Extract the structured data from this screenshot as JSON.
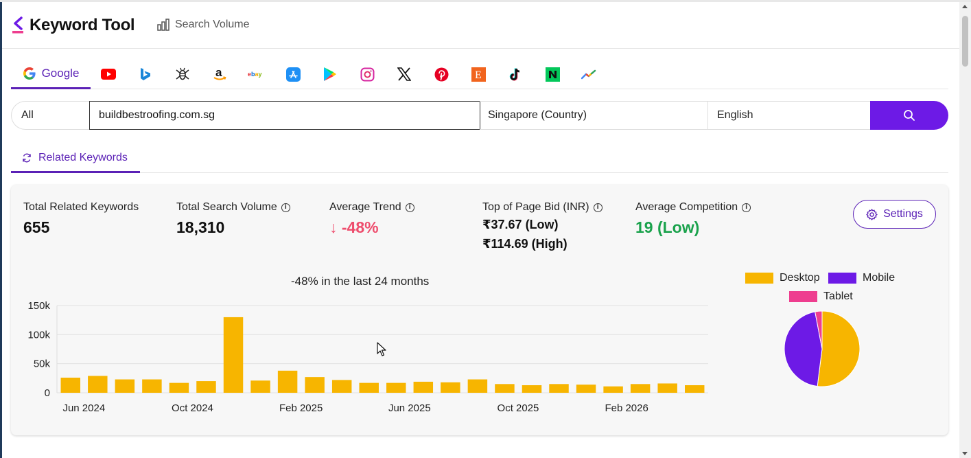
{
  "app": {
    "title": "Keyword Tool",
    "nav_search_volume": "Search Volume"
  },
  "platform_tabs": {
    "active_label": "Google",
    "icons": [
      "youtube-icon",
      "bing-icon",
      "bee-icon",
      "amazon-icon",
      "ebay-icon",
      "app-store-icon",
      "play-store-icon",
      "instagram-icon",
      "x-icon",
      "pinterest-icon",
      "etsy-icon",
      "tiktok-icon",
      "naver-icon",
      "trends-icon"
    ]
  },
  "search": {
    "scope": "All",
    "query": "buildbestroofing.com.sg",
    "location": "Singapore (Country)",
    "language": "English"
  },
  "result_tabs": {
    "related_label": "Related Keywords"
  },
  "stats": {
    "total_related_label": "Total Related Keywords",
    "total_related_value": "655",
    "total_volume_label": "Total Search Volume",
    "total_volume_value": "18,310",
    "avg_trend_label": "Average Trend",
    "avg_trend_value": "↓ -48%",
    "bid_label": "Top of Page Bid (INR)",
    "bid_low": "₹37.67 (Low)",
    "bid_high": "₹114.69 (High)",
    "competition_label": "Average Competition",
    "competition_value": "19 (Low)",
    "settings_label": "Settings"
  },
  "colors": {
    "accent": "#6d1ae6",
    "bar": "#f7b500",
    "trend_red": "#ee4d6d",
    "competition_green": "#1aa24c",
    "desktop": "#f7b500",
    "mobile": "#6d1ae6",
    "tablet": "#ee3e8f"
  },
  "chart_data": [
    {
      "type": "bar",
      "title": "-48% in the last 24 months",
      "x_tick_labels": [
        "Jun 2024",
        "Oct 2024",
        "Feb 2025",
        "Jun 2025",
        "Oct 2025",
        "Feb 2026"
      ],
      "y_tick_labels": [
        "150k",
        "100k",
        "50k",
        "0"
      ],
      "ylim": [
        0,
        150000
      ],
      "grid": true,
      "categories": [
        "May 2024",
        "Jun 2024",
        "Jul 2024",
        "Aug 2024",
        "Sep 2024",
        "Oct 2024",
        "Nov 2024",
        "Dec 2024",
        "Jan 2025",
        "Feb 2025",
        "Mar 2025",
        "Apr 2025",
        "May 2025",
        "Jun 2025",
        "Jul 2025",
        "Aug 2025",
        "Sep 2025",
        "Oct 2025",
        "Nov 2025",
        "Dec 2025",
        "Jan 2026",
        "Feb 2026",
        "Mar 2026",
        "Apr 2026"
      ],
      "values": [
        26000,
        29000,
        23000,
        23000,
        17000,
        20000,
        130000,
        21000,
        38000,
        27000,
        22000,
        17000,
        17000,
        19000,
        18000,
        23000,
        15000,
        13000,
        15000,
        14000,
        11000,
        15000,
        16000,
        13000
      ]
    },
    {
      "type": "pie",
      "legend": [
        "Desktop",
        "Mobile",
        "Tablet"
      ],
      "values": [
        52,
        45,
        3
      ]
    }
  ]
}
